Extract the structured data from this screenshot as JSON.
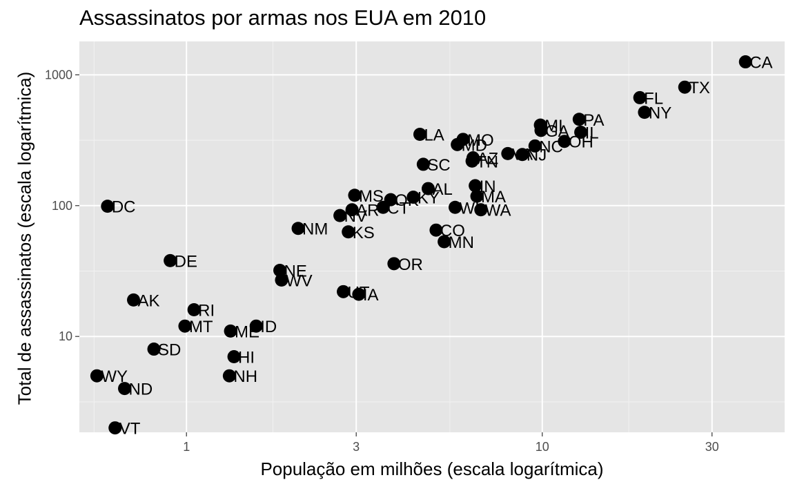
{
  "chart_data": {
    "type": "scatter",
    "title": "Assassinatos por armas nos EUA em 2010",
    "xlabel": "População em milhões (escala logarítmica)",
    "ylabel": "Total de assassinatos (escala logarítmica)",
    "x_scale": "log10",
    "y_scale": "log10",
    "xlim": [
      0.5,
      48
    ],
    "ylim": [
      1.85,
      1800
    ],
    "x_ticks": [
      1,
      3,
      10,
      30
    ],
    "y_ticks": [
      10,
      100,
      1000
    ],
    "x_tick_labels": [
      "1",
      "3",
      "10",
      "30"
    ],
    "y_tick_labels": [
      "10",
      "100",
      "1000"
    ],
    "x_minor_gridlines": [
      0.55,
      1.75,
      5.5,
      17.5
    ],
    "y_minor_gridlines": [
      3.16,
      31.6,
      316
    ],
    "grid": true,
    "background_color": "#e5e5e5",
    "point_color": "#000000",
    "points": [
      {
        "label": "CA",
        "x": 37.25,
        "y": 1257
      },
      {
        "label": "TX",
        "x": 25.15,
        "y": 805
      },
      {
        "label": "FL",
        "x": 18.8,
        "y": 669
      },
      {
        "label": "NY",
        "x": 19.38,
        "y": 517
      },
      {
        "label": "PA",
        "x": 12.7,
        "y": 457
      },
      {
        "label": "MI",
        "x": 9.88,
        "y": 413
      },
      {
        "label": "GA",
        "x": 9.92,
        "y": 376
      },
      {
        "label": "IL",
        "x": 12.83,
        "y": 364
      },
      {
        "label": "OH",
        "x": 11.54,
        "y": 310
      },
      {
        "label": "NC",
        "x": 9.54,
        "y": 286
      },
      {
        "label": "NJ",
        "x": 8.79,
        "y": 246
      },
      {
        "label": "VA",
        "x": 8.0,
        "y": 250
      },
      {
        "label": "LA",
        "x": 4.53,
        "y": 351
      },
      {
        "label": "MO",
        "x": 5.99,
        "y": 321
      },
      {
        "label": "MD",
        "x": 5.77,
        "y": 293
      },
      {
        "label": "TN",
        "x": 6.35,
        "y": 219
      },
      {
        "label": "AZ",
        "x": 6.39,
        "y": 232
      },
      {
        "label": "SC",
        "x": 4.63,
        "y": 207
      },
      {
        "label": "IN",
        "x": 6.48,
        "y": 142
      },
      {
        "label": "AL",
        "x": 4.78,
        "y": 135
      },
      {
        "label": "MA",
        "x": 6.55,
        "y": 118
      },
      {
        "label": "WA",
        "x": 6.72,
        "y": 93
      },
      {
        "label": "WI",
        "x": 5.69,
        "y": 97
      },
      {
        "label": "KY",
        "x": 4.34,
        "y": 116
      },
      {
        "label": "OK",
        "x": 3.75,
        "y": 111
      },
      {
        "label": "CT",
        "x": 3.57,
        "y": 97
      },
      {
        "label": "MS",
        "x": 2.97,
        "y": 120
      },
      {
        "label": "AR",
        "x": 2.92,
        "y": 93
      },
      {
        "label": "NV",
        "x": 2.7,
        "y": 84
      },
      {
        "label": "KS",
        "x": 2.85,
        "y": 63
      },
      {
        "label": "CO",
        "x": 5.03,
        "y": 65
      },
      {
        "label": "MN",
        "x": 5.3,
        "y": 53
      },
      {
        "label": "NM",
        "x": 2.06,
        "y": 67
      },
      {
        "label": "OR",
        "x": 3.83,
        "y": 36
      },
      {
        "label": "UT",
        "x": 2.76,
        "y": 22
      },
      {
        "label": "IA",
        "x": 3.05,
        "y": 21
      },
      {
        "label": "NE",
        "x": 1.83,
        "y": 32
      },
      {
        "label": "WV",
        "x": 1.85,
        "y": 27
      },
      {
        "label": "DC",
        "x": 0.6,
        "y": 99
      },
      {
        "label": "DE",
        "x": 0.9,
        "y": 38
      },
      {
        "label": "AK",
        "x": 0.71,
        "y": 19
      },
      {
        "label": "RI",
        "x": 1.05,
        "y": 16
      },
      {
        "label": "MT",
        "x": 0.99,
        "y": 12
      },
      {
        "label": "ID",
        "x": 1.57,
        "y": 12
      },
      {
        "label": "ME",
        "x": 1.33,
        "y": 11
      },
      {
        "label": "SD",
        "x": 0.81,
        "y": 8
      },
      {
        "label": "HI",
        "x": 1.36,
        "y": 7
      },
      {
        "label": "NH",
        "x": 1.32,
        "y": 5
      },
      {
        "label": "WY",
        "x": 0.56,
        "y": 5
      },
      {
        "label": "ND",
        "x": 0.67,
        "y": 4
      },
      {
        "label": "VT",
        "x": 0.63,
        "y": 2
      }
    ]
  }
}
